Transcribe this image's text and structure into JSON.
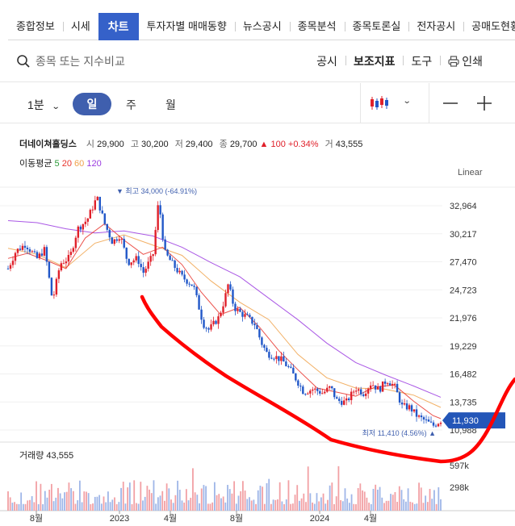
{
  "tabs": [
    "종합정보",
    "시세",
    "차트",
    "투자자별 매매동향",
    "뉴스공시",
    "종목분석",
    "종목토론실",
    "전자공시",
    "공매도현황"
  ],
  "active_tab": "차트",
  "search": {
    "placeholder": "종목 또는 지수비교"
  },
  "top_menu": {
    "notice": "공시",
    "indicators": "보조지표",
    "tools": "도구",
    "print": "인쇄"
  },
  "toolbar": {
    "minute": "1분",
    "day": "일",
    "week": "주",
    "month": "월"
  },
  "quote": {
    "name": "더네이쳐홀딩스",
    "open_label": "시",
    "open": "29,900",
    "high_label": "고",
    "high": "30,200",
    "low_label": "저",
    "low": "29,400",
    "close_label": "종",
    "close": "29,700",
    "change": "▲ 100",
    "change_pct": "+0.34%",
    "volume_label": "거",
    "volume": "43,555"
  },
  "ma": {
    "label": "이동평균",
    "p5": "5",
    "p20": "20",
    "p60": "60",
    "p120": "120"
  },
  "scale_mode": "Linear",
  "volume_label": "거래량 43,555",
  "colors": {
    "up": "#e0202a",
    "down": "#2157c8",
    "accent": "#3f5fae",
    "ma5": "#2d9b3a",
    "ma20": "#e8332c",
    "ma60": "#f0a24a",
    "ma120": "#9b3be0",
    "annotation": "#ff0000"
  },
  "chart_data": {
    "type": "candlestick",
    "y_ticks": [
      "32,964",
      "30,217",
      "27,470",
      "24,723",
      "21,976",
      "19,229",
      "16,482",
      "13,735",
      "10,988"
    ],
    "y_tick_values": [
      32964,
      30217,
      27470,
      24723,
      21976,
      19229,
      16482,
      13735,
      10988
    ],
    "current_price_label": "11,930",
    "current_price": 11930,
    "high_annotation": "▼ 최고 34,000 (-64.91%)",
    "low_annotation": "최저 11,410 (4.56%) ▲",
    "x_ticks": [
      "8월",
      "2023",
      "4월",
      "8월",
      "2024",
      "4월"
    ],
    "volume_ticks": [
      "597k",
      "298k"
    ],
    "price_path": [
      [
        0,
        26800
      ],
      [
        8,
        28500
      ],
      [
        18,
        29200
      ],
      [
        30,
        27800
      ],
      [
        38,
        28700
      ],
      [
        46,
        23600
      ],
      [
        54,
        27300
      ],
      [
        64,
        27900
      ],
      [
        72,
        30700
      ],
      [
        82,
        31600
      ],
      [
        92,
        33800
      ],
      [
        100,
        31200
      ],
      [
        108,
        29400
      ],
      [
        116,
        30100
      ],
      [
        124,
        27400
      ],
      [
        134,
        27800
      ],
      [
        140,
        26400
      ],
      [
        150,
        28100
      ],
      [
        156,
        33600
      ],
      [
        162,
        28400
      ],
      [
        170,
        27300
      ],
      [
        180,
        26000
      ],
      [
        192,
        25100
      ],
      [
        202,
        21400
      ],
      [
        208,
        20800
      ],
      [
        218,
        22000
      ],
      [
        224,
        23700
      ],
      [
        228,
        25300
      ],
      [
        234,
        23000
      ],
      [
        240,
        22500
      ],
      [
        248,
        22000
      ],
      [
        256,
        21300
      ],
      [
        262,
        19600
      ],
      [
        268,
        18500
      ],
      [
        276,
        18200
      ],
      [
        284,
        17800
      ],
      [
        292,
        16900
      ],
      [
        300,
        15700
      ],
      [
        306,
        14700
      ],
      [
        316,
        15000
      ],
      [
        326,
        14600
      ],
      [
        334,
        15200
      ],
      [
        340,
        13900
      ],
      [
        350,
        13700
      ],
      [
        360,
        15100
      ],
      [
        368,
        14600
      ],
      [
        376,
        15600
      ],
      [
        384,
        14900
      ],
      [
        392,
        15900
      ],
      [
        400,
        15300
      ],
      [
        408,
        13300
      ],
      [
        416,
        13200
      ],
      [
        424,
        12300
      ],
      [
        432,
        11900
      ],
      [
        440,
        11400
      ],
      [
        448,
        11930
      ]
    ],
    "ma20": [
      [
        0,
        27800
      ],
      [
        20,
        28300
      ],
      [
        40,
        27600
      ],
      [
        60,
        26800
      ],
      [
        80,
        29800
      ],
      [
        100,
        31200
      ],
      [
        120,
        29600
      ],
      [
        140,
        28200
      ],
      [
        160,
        28900
      ],
      [
        180,
        27200
      ],
      [
        200,
        24500
      ],
      [
        220,
        22300
      ],
      [
        240,
        23000
      ],
      [
        260,
        21100
      ],
      [
        280,
        18800
      ],
      [
        300,
        16900
      ],
      [
        320,
        15100
      ],
      [
        340,
        14700
      ],
      [
        360,
        14300
      ],
      [
        380,
        15200
      ],
      [
        400,
        15400
      ],
      [
        420,
        13800
      ],
      [
        440,
        12400
      ],
      [
        448,
        12100
      ]
    ],
    "ma60": [
      [
        0,
        28800
      ],
      [
        30,
        28200
      ],
      [
        60,
        26900
      ],
      [
        90,
        29300
      ],
      [
        120,
        30100
      ],
      [
        150,
        29100
      ],
      [
        180,
        28100
      ],
      [
        210,
        25600
      ],
      [
        240,
        23500
      ],
      [
        270,
        21800
      ],
      [
        300,
        18400
      ],
      [
        330,
        16100
      ],
      [
        360,
        15100
      ],
      [
        390,
        15000
      ],
      [
        420,
        14400
      ],
      [
        448,
        13200
      ]
    ],
    "ma120": [
      [
        0,
        31500
      ],
      [
        30,
        31300
      ],
      [
        60,
        30700
      ],
      [
        90,
        30300
      ],
      [
        120,
        30500
      ],
      [
        150,
        30000
      ],
      [
        180,
        28900
      ],
      [
        210,
        27400
      ],
      [
        240,
        26000
      ],
      [
        270,
        23900
      ],
      [
        300,
        21800
      ],
      [
        330,
        19500
      ],
      [
        360,
        17600
      ],
      [
        390,
        16400
      ],
      [
        420,
        15300
      ],
      [
        448,
        14200
      ]
    ]
  }
}
